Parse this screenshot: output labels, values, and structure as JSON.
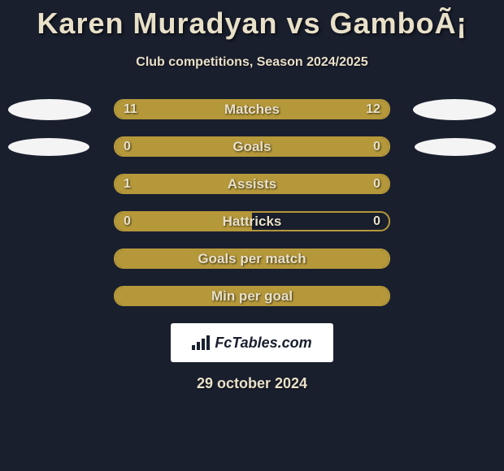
{
  "title": "Karen Muradyan vs GamboÃ¡",
  "subtitle": "Club competitions, Season 2024/2025",
  "footer_date": "29 october 2024",
  "logo_text": "FcTables.com",
  "colors": {
    "background": "#1a1f2e",
    "bar_border": "#b5983a",
    "bar_fill": "#b5983a",
    "text": "#e8e0c8",
    "placeholder": "#f4f4f4",
    "logo_bg": "#ffffff",
    "logo_text": "#1a1f2e"
  },
  "placeholders": {
    "row0": {
      "left_w": 102,
      "left_h": 26,
      "right_w": 102,
      "right_h": 26
    },
    "row1": {
      "left_w": 100,
      "left_h": 22,
      "right_w": 100,
      "right_h": 22
    }
  },
  "rows": [
    {
      "label": "Matches",
      "left_val": "11",
      "right_val": "12",
      "left_fill_pct": 100,
      "right_fill_pct": 0,
      "show_left_placeholder": true,
      "show_right_placeholder": true
    },
    {
      "label": "Goals",
      "left_val": "0",
      "right_val": "0",
      "left_fill_pct": 100,
      "right_fill_pct": 0,
      "show_left_placeholder": true,
      "show_right_placeholder": true
    },
    {
      "label": "Assists",
      "left_val": "1",
      "right_val": "0",
      "left_fill_pct": 78,
      "right_fill_pct": 22,
      "show_left_placeholder": false,
      "show_right_placeholder": false
    },
    {
      "label": "Hattricks",
      "left_val": "0",
      "right_val": "0",
      "left_fill_pct": 50,
      "right_fill_pct": 0,
      "show_left_placeholder": false,
      "show_right_placeholder": false
    },
    {
      "label": "Goals per match",
      "left_val": "",
      "right_val": "",
      "left_fill_pct": 100,
      "right_fill_pct": 0,
      "show_left_placeholder": false,
      "show_right_placeholder": false
    },
    {
      "label": "Min per goal",
      "left_val": "",
      "right_val": "",
      "left_fill_pct": 100,
      "right_fill_pct": 0,
      "show_left_placeholder": false,
      "show_right_placeholder": false
    }
  ],
  "typography": {
    "title_fontsize": 36,
    "subtitle_fontsize": 16,
    "row_label_fontsize": 17,
    "value_fontsize": 16,
    "date_fontsize": 18
  }
}
